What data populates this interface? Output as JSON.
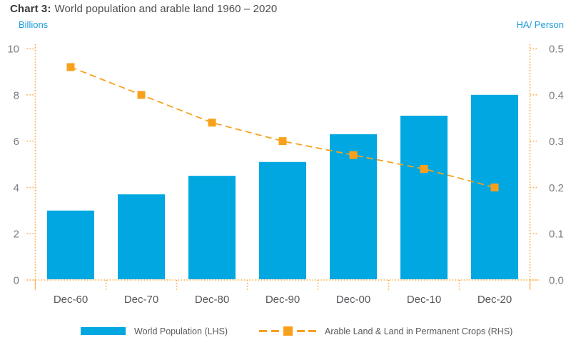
{
  "title": {
    "prefix": "Chart 3:",
    "text": "World population and arable land 1960 – 2020"
  },
  "axis_units": {
    "left": "Billions",
    "right": "HA/ Person"
  },
  "legend": {
    "population": "World Population (LHS)",
    "arable": "Arable Land & Land in Permanent Crops (RHS)"
  },
  "colors": {
    "bar_blue": "#00A7E1",
    "orange": "#F8A01C",
    "axis_dotted_orange": "#FBAD4A",
    "unit_blue": "#1B9CD8",
    "ytick_gray": "#7C7D80",
    "xtick_gray": "#55565A",
    "title_prefix_dark": "#39393B",
    "title_text_gray": "#4D4D4F",
    "legend_text_gray": "#58595B"
  },
  "chart_data": {
    "type": "bar",
    "title": "Chart 3: World population and arable land 1960 – 2020",
    "categories": [
      "Dec-60",
      "Dec-70",
      "Dec-80",
      "Dec-90",
      "Dec-00",
      "Dec-10",
      "Dec-20"
    ],
    "series": [
      {
        "name": "World Population (LHS)",
        "type": "bar",
        "axis": "left",
        "values": [
          3.0,
          3.7,
          4.5,
          5.1,
          6.3,
          7.1,
          8.0
        ]
      },
      {
        "name": "Arable Land & Land in Permanent Crops (RHS)",
        "type": "line",
        "style": "dashed-with-square-markers",
        "axis": "right",
        "values": [
          0.46,
          0.4,
          0.34,
          0.3,
          0.27,
          0.24,
          0.2
        ]
      }
    ],
    "left_axis": {
      "label": "Billions",
      "min": 0,
      "max": 10,
      "ticks": [
        0,
        2,
        4,
        6,
        8,
        10
      ]
    },
    "right_axis": {
      "label": "HA/ Person",
      "min": 0,
      "max": 0.5,
      "ticks": [
        0,
        0.1,
        0.2,
        0.3,
        0.4,
        0.5
      ]
    },
    "grid": "none",
    "axis_style": "dotted-orange",
    "legend_position": "bottom"
  }
}
